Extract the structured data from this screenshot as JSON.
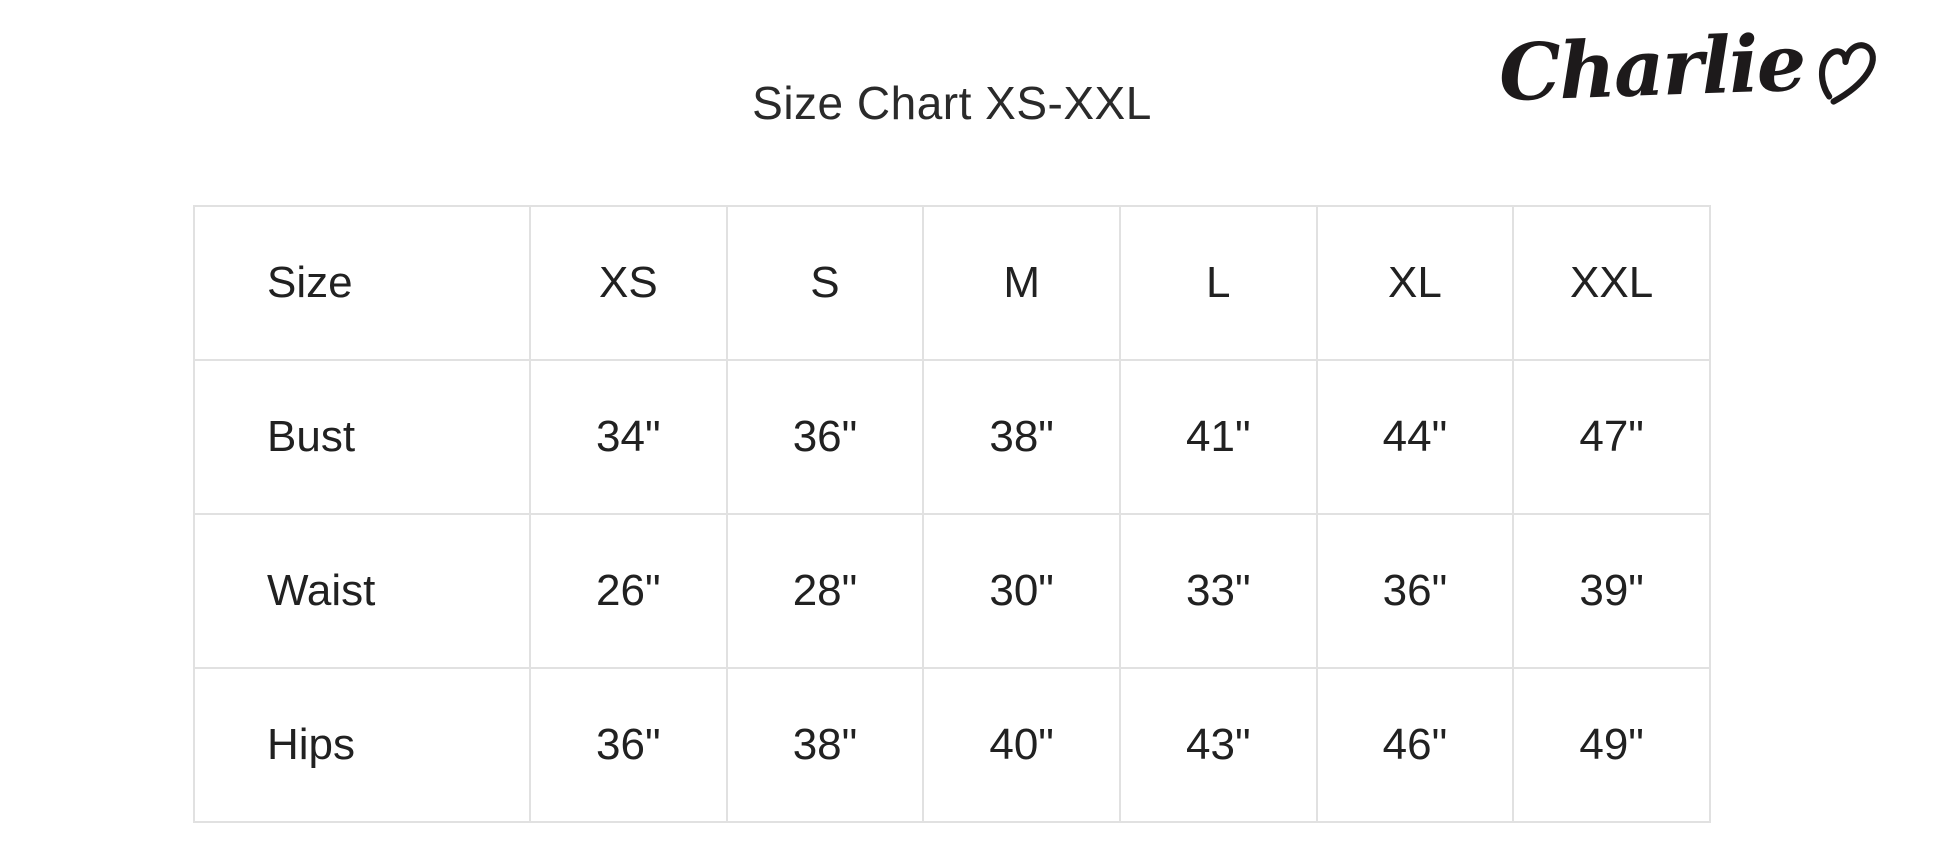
{
  "header": {
    "title": "Size Chart XS-XXL",
    "brand": "Charlie",
    "brand_icon": "heart-b-icon"
  },
  "chart_data": {
    "type": "table",
    "title": "Size Chart XS-XXL",
    "columns": [
      "Size",
      "XS",
      "S",
      "M",
      "L",
      "XL",
      "XXL"
    ],
    "rows": [
      {
        "label": "Bust",
        "values": [
          "34\"",
          "36\"",
          "38\"",
          "41\"",
          "44\"",
          "47\""
        ]
      },
      {
        "label": "Waist",
        "values": [
          "26\"",
          "28\"",
          "30\"",
          "33\"",
          "36\"",
          "39\""
        ]
      },
      {
        "label": "Hips",
        "values": [
          "36\"",
          "38\"",
          "40\"",
          "43\"",
          "46\"",
          "49\""
        ]
      }
    ]
  },
  "colors": {
    "text": "#212121",
    "border": "#e1e1e1",
    "background": "#ffffff",
    "logo": "#1d1a1b"
  }
}
